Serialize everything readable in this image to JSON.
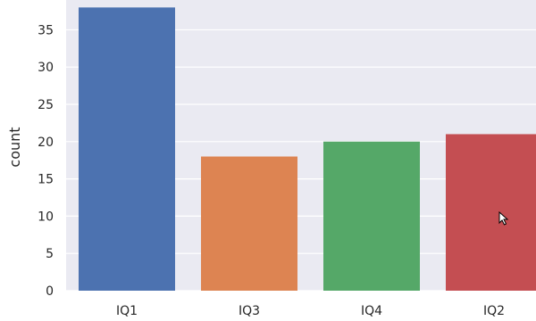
{
  "chart_data": {
    "type": "bar",
    "categories": [
      "IQ1",
      "IQ3",
      "IQ4",
      "IQ2"
    ],
    "values": [
      38,
      18,
      20,
      21
    ],
    "ylabel": "count",
    "xlabel": "",
    "ylim": [
      0,
      39
    ],
    "yticks": [
      0,
      5,
      10,
      15,
      20,
      25,
      30,
      35
    ],
    "grid": true,
    "style": "seaborn darkgrid",
    "colors": {
      "background": "#eaeaf2",
      "grid": "#ffffff",
      "bars": [
        "#4c72b0",
        "#dd8452",
        "#55a868",
        "#c44e52"
      ]
    }
  },
  "cursor": {
    "icon": "mouse-pointer-icon"
  }
}
